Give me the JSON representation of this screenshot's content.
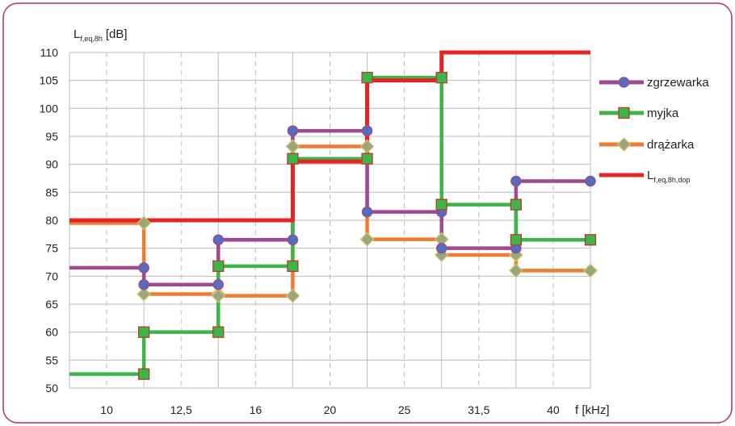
{
  "chart_data": {
    "type": "line",
    "step": true,
    "ylabel": {
      "main": "L",
      "sub": "f,eq,8h",
      "unit": "[dB]"
    },
    "xlabel": "f [kHz]",
    "ylim": [
      50,
      110
    ],
    "yticks": [
      50,
      55,
      60,
      65,
      70,
      75,
      80,
      85,
      90,
      95,
      100,
      105,
      110
    ],
    "categories": [
      "10",
      "12,5",
      "16",
      "20",
      "25",
      "31,5",
      "40"
    ],
    "grid": {
      "horizontal": "solid",
      "vertical_category_edges": "solid",
      "vertical_category_centers": "dashed"
    },
    "legend_position": "right",
    "series": [
      {
        "name": "zgrzewarka",
        "color": "#9e4a8e",
        "marker": "circle",
        "marker_color": "#4f6fc0",
        "values": [
          71.5,
          68.5,
          76.5,
          96,
          81.5,
          75,
          87
        ]
      },
      {
        "name": "myjka",
        "color": "#3db54a",
        "marker": "square",
        "marker_color": "#3db54a",
        "values": [
          52.5,
          60,
          71.8,
          91,
          105.5,
          82.8,
          76.5
        ]
      },
      {
        "name": "drążarka",
        "color": "#ee7d31",
        "marker": "diamond",
        "marker_color": "#9aa67c",
        "values": [
          79.5,
          66.8,
          66.5,
          93.2,
          76.6,
          73.8,
          71
        ]
      },
      {
        "name": "L",
        "name_sub": "f,eq,8h,dop",
        "color": "#e42526",
        "marker": "none",
        "values": [
          80,
          80,
          80,
          90.5,
          105,
          110,
          110
        ]
      }
    ]
  },
  "colors": {
    "frame": "#b1364e",
    "grid": "#bdbdbd",
    "dashed_grid": "#bdbdbd"
  }
}
